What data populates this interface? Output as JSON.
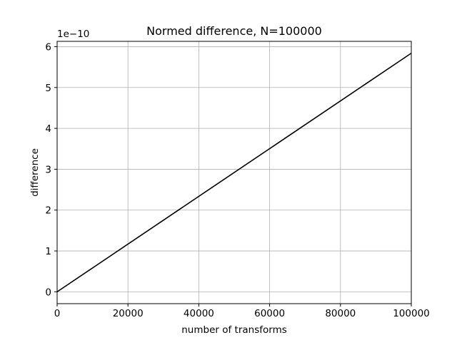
{
  "chart_data": {
    "type": "line",
    "title": "Normed difference, N=100000",
    "xlabel": "number of transforms",
    "ylabel": "difference",
    "y_offset_label": "1e−10",
    "xlim": [
      0,
      100000
    ],
    "ylim": [
      -0.29,
      6.13
    ],
    "x_ticks": [
      0,
      20000,
      40000,
      60000,
      80000,
      100000
    ],
    "x_tick_labels": [
      "0",
      "20000",
      "40000",
      "60000",
      "80000",
      "100000"
    ],
    "y_ticks": [
      0,
      1,
      2,
      3,
      4,
      5,
      6
    ],
    "y_tick_labels": [
      "0",
      "1",
      "2",
      "3",
      "4",
      "5",
      "6"
    ],
    "grid": true,
    "series": [
      {
        "color": "#000000",
        "x": [
          0,
          100000
        ],
        "y": [
          0,
          5.84
        ]
      }
    ]
  }
}
